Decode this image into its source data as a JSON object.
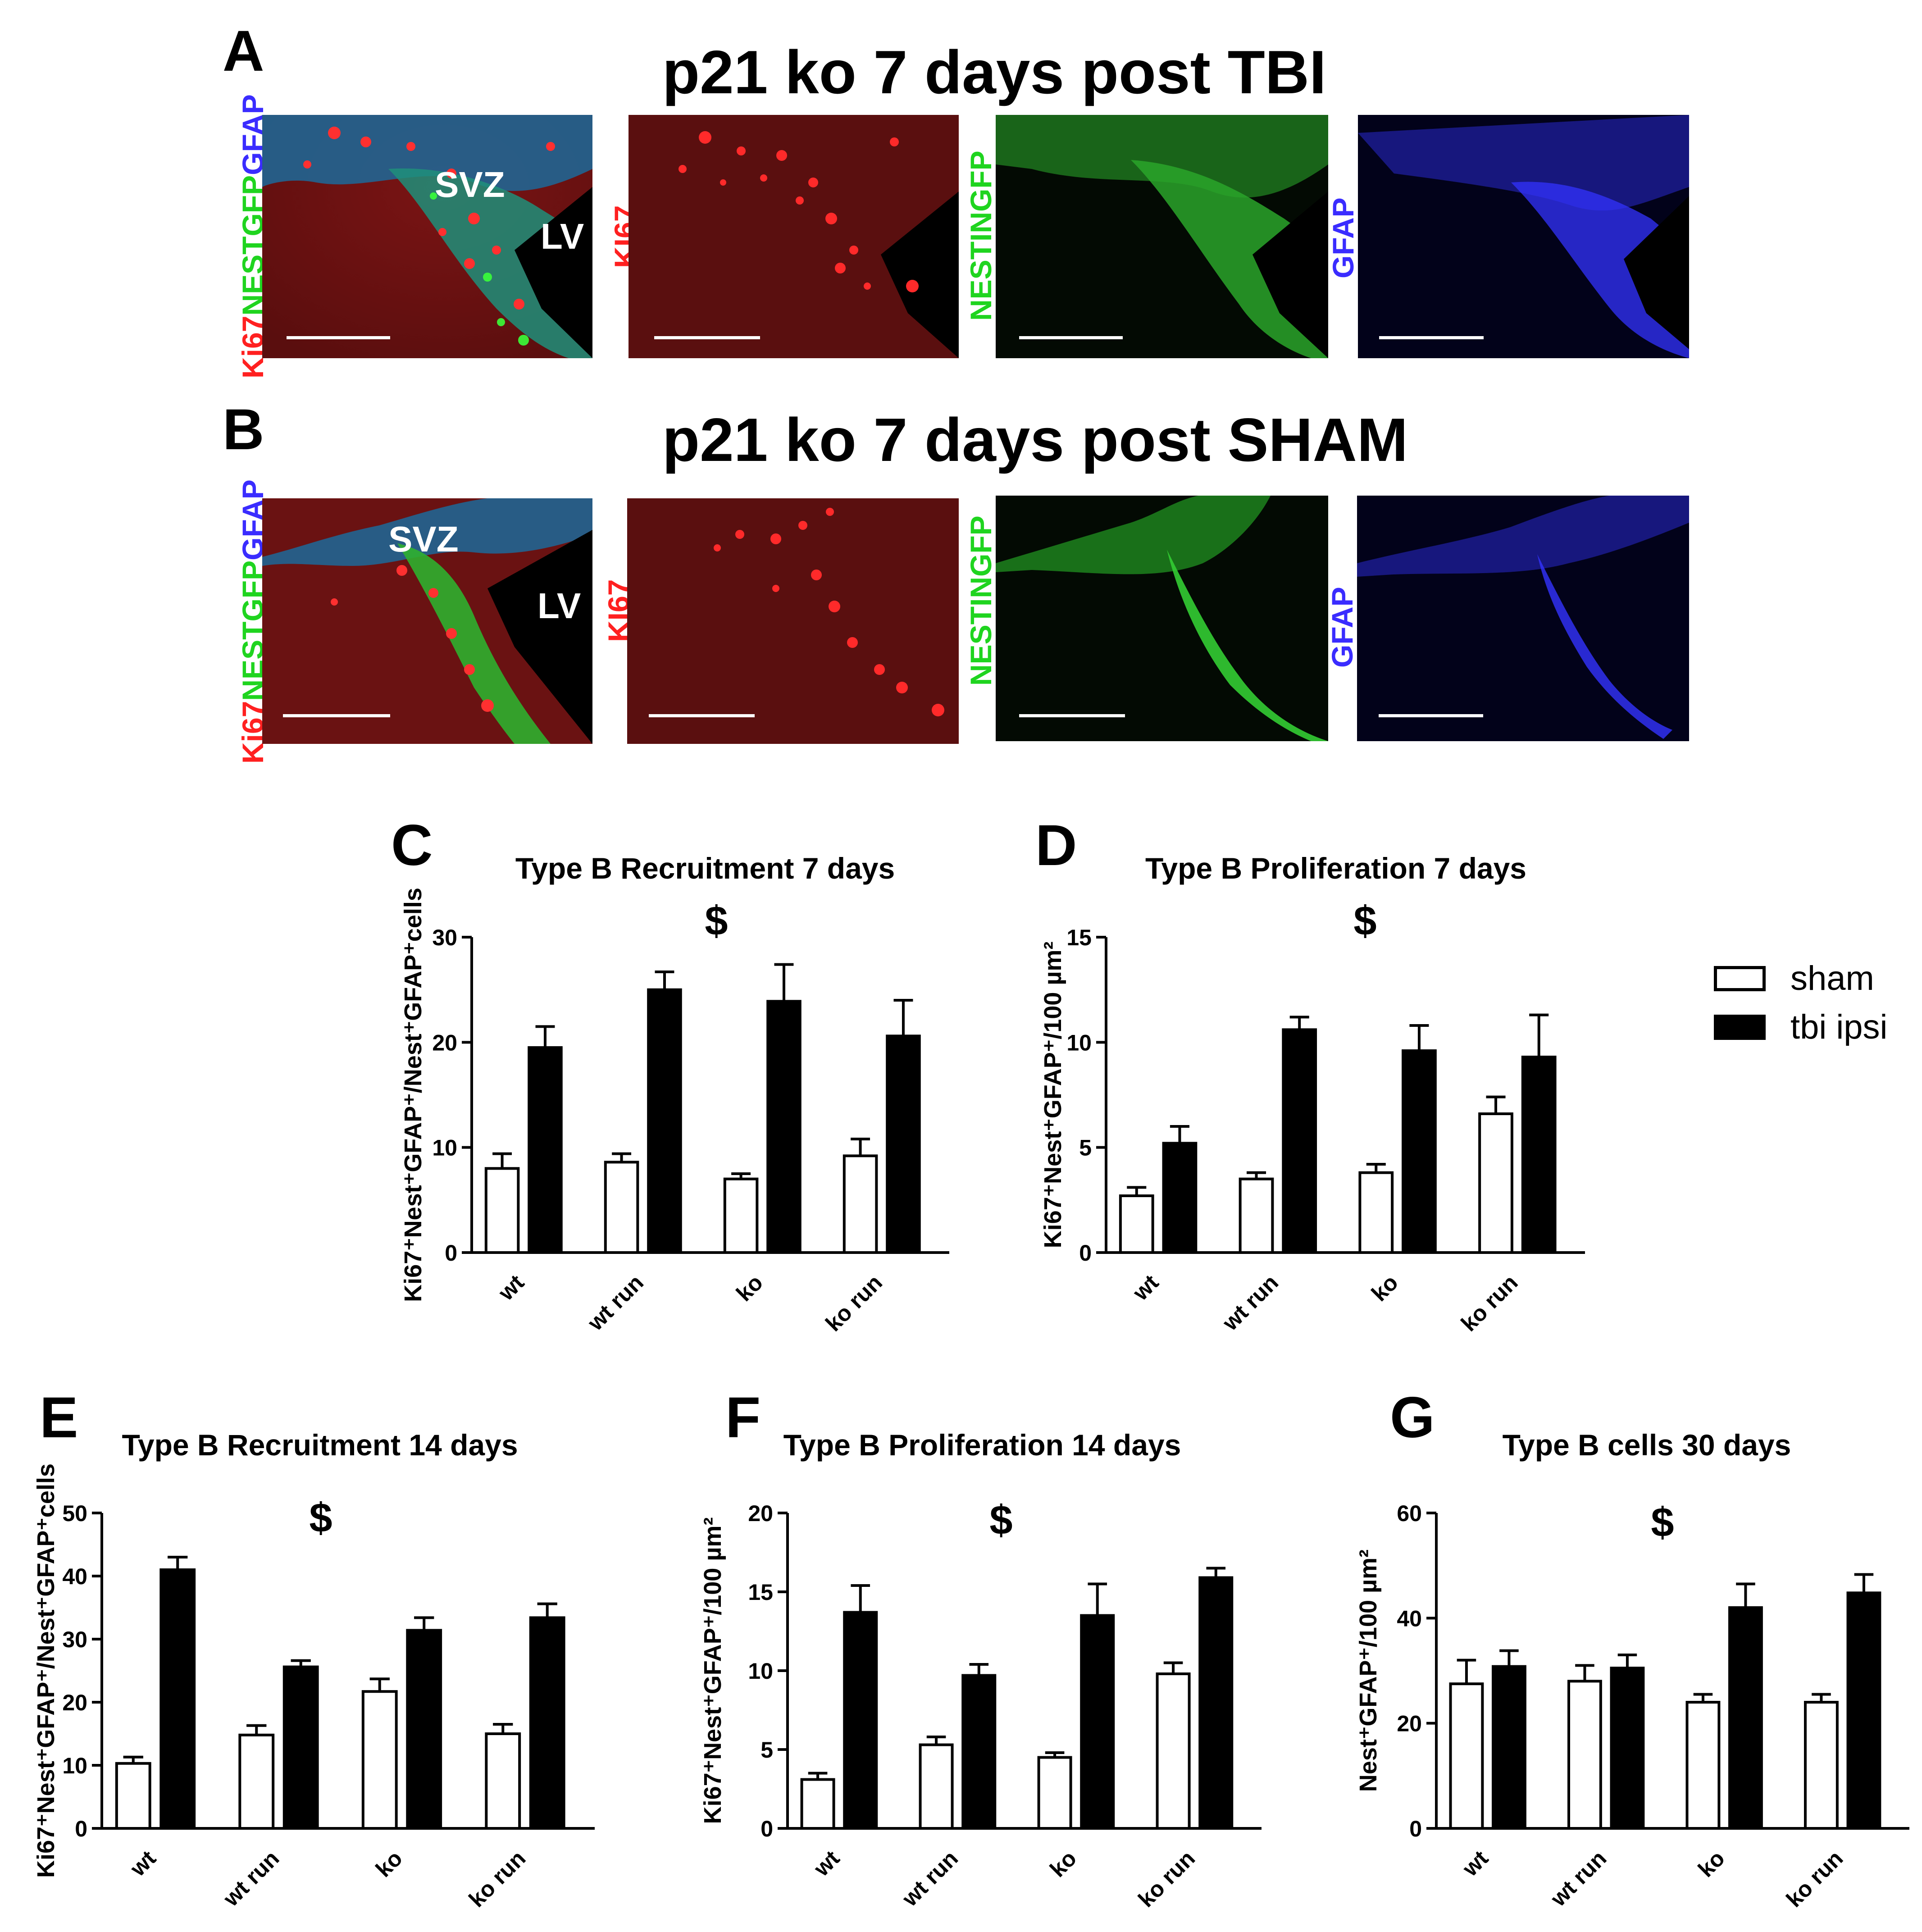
{
  "row_a": {
    "letter": "A",
    "title": "p21 ko 7 days post TBI",
    "merge_label": {
      "ki67": "Ki67",
      "nest": "NESTGFP",
      "gfap": "GFAP"
    },
    "ki67_label": "KI67",
    "nestin_label": "NESTINGFP",
    "gfap_label": "GFAP",
    "svz": "SVZ",
    "lv": "LV"
  },
  "row_b": {
    "letter": "B",
    "title": "p21 ko 7 days post SHAM",
    "merge_label": {
      "ki67": "Ki67",
      "nest": "NESTGFP",
      "gfap": "GFAP"
    },
    "ki67_label": "KI67",
    "nestin_label": "NESTINGFP",
    "gfap_label": "GFAP",
    "svz": "SVZ",
    "lv": "LV"
  },
  "colors": {
    "ki67": "#ff2020",
    "nestin": "#1fd41f",
    "gfap": "#3a2cff",
    "sham": "#ffffff",
    "tbi": "#000000"
  },
  "legend": {
    "sham": "sham",
    "tbi": "tbi ipsi"
  },
  "chart_data": [
    {
      "letter": "C",
      "type": "bar",
      "title": "Type B Recruitment 7 days",
      "ylabel": "Ki67⁺Nest⁺GFAP⁺/Nest⁺GFAP⁺cells",
      "annotation": "$",
      "ylim": [
        0,
        30
      ],
      "yticks": [
        "0",
        "10",
        "20",
        "30"
      ],
      "categories": [
        "wt",
        "wt run",
        "ko",
        "ko run"
      ],
      "series": [
        {
          "name": "sham",
          "values": [
            8.0,
            8.6,
            7.0,
            9.2
          ],
          "errors": [
            1.4,
            0.8,
            0.5,
            1.6
          ]
        },
        {
          "name": "tbi ipsi",
          "values": [
            19.5,
            25.0,
            23.9,
            20.6
          ],
          "errors": [
            2.0,
            1.7,
            3.5,
            3.4
          ]
        }
      ]
    },
    {
      "letter": "D",
      "type": "bar",
      "title": "Type B Proliferation 7 days",
      "ylabel": "Ki67⁺Nest⁺GFAP⁺/100 µm²",
      "annotation": "$",
      "ylim": [
        0,
        15
      ],
      "yticks": [
        "0",
        "5",
        "10",
        "15"
      ],
      "categories": [
        "wt",
        "wt run",
        "ko",
        "ko run"
      ],
      "series": [
        {
          "name": "sham",
          "values": [
            2.7,
            3.5,
            3.8,
            6.6
          ],
          "errors": [
            0.4,
            0.3,
            0.4,
            0.8
          ]
        },
        {
          "name": "tbi ipsi",
          "values": [
            5.2,
            10.6,
            9.6,
            9.3
          ],
          "errors": [
            0.8,
            0.6,
            1.2,
            2.0
          ]
        }
      ]
    },
    {
      "letter": "E",
      "type": "bar",
      "title": "Type B Recruitment 14 days",
      "ylabel": "Ki67⁺Nest⁺GFAP⁺/Nest⁺GFAP⁺cells",
      "annotation": "$",
      "ylim": [
        0,
        50
      ],
      "yticks": [
        "0",
        "10",
        "20",
        "30",
        "40",
        "50"
      ],
      "categories": [
        "wt",
        "wt run",
        "ko",
        "ko run"
      ],
      "series": [
        {
          "name": "sham",
          "values": [
            10.3,
            14.8,
            21.7,
            15.0
          ],
          "errors": [
            1.0,
            1.5,
            2.0,
            1.5
          ]
        },
        {
          "name": "tbi ipsi",
          "values": [
            41.0,
            25.6,
            31.4,
            33.4
          ],
          "errors": [
            2.0,
            1.0,
            2.0,
            2.2
          ]
        }
      ]
    },
    {
      "letter": "F",
      "type": "bar",
      "title": "Type B Proliferation 14 days",
      "ylabel": "Ki67⁺Nest⁺GFAP⁺/100 µm²",
      "annotation": "$",
      "ylim": [
        0,
        20
      ],
      "yticks": [
        "0",
        "5",
        "10",
        "15",
        "20"
      ],
      "categories": [
        "wt",
        "wt run",
        "ko",
        "ko run"
      ],
      "series": [
        {
          "name": "sham",
          "values": [
            3.1,
            5.3,
            4.5,
            9.8
          ],
          "errors": [
            0.4,
            0.5,
            0.3,
            0.7
          ]
        },
        {
          "name": "tbi ipsi",
          "values": [
            13.7,
            9.7,
            13.5,
            15.9
          ],
          "errors": [
            1.7,
            0.7,
            2.0,
            0.6
          ]
        }
      ]
    },
    {
      "letter": "G",
      "type": "bar",
      "title": "Type B cells 30 days",
      "ylabel": "Nest⁺GFAP⁺/100 µm²",
      "annotation": "$",
      "ylim": [
        0,
        60
      ],
      "yticks": [
        "0",
        "20",
        "40",
        "60"
      ],
      "categories": [
        "wt",
        "wt run",
        "ko",
        "ko run"
      ],
      "series": [
        {
          "name": "sham",
          "values": [
            27.5,
            28.0,
            24.0,
            24.0
          ],
          "errors": [
            4.5,
            3.0,
            1.5,
            1.5
          ]
        },
        {
          "name": "tbi ipsi",
          "values": [
            30.8,
            30.5,
            42.0,
            44.8
          ],
          "errors": [
            3.0,
            2.5,
            4.5,
            3.5
          ]
        }
      ]
    }
  ]
}
